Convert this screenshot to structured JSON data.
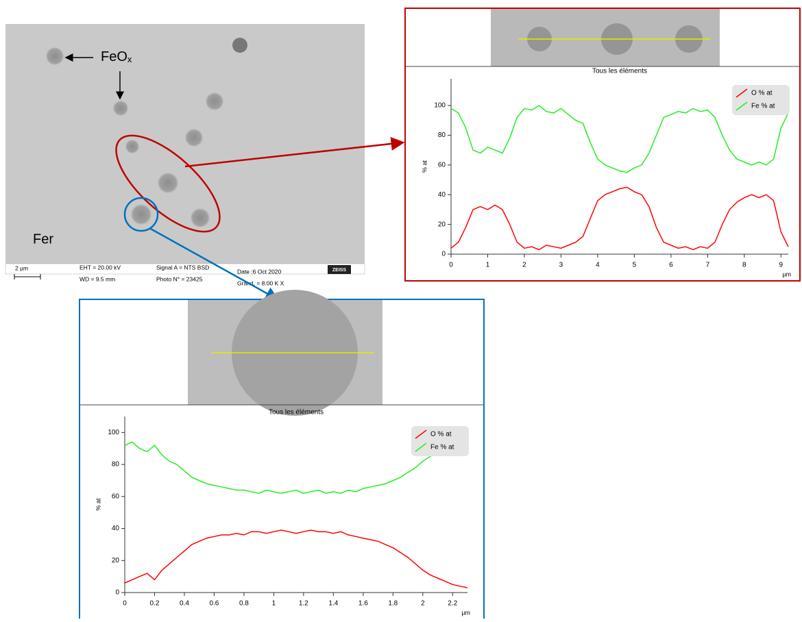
{
  "sem": {
    "label_oxide": "FeO",
    "label_oxide_sub": "x",
    "label_matrix": "Fer",
    "scale": "2 µm",
    "eht": "EHT = 20.00 kV",
    "wd": "WD = 9.5 mm",
    "signal": "Signal A = NTS BSD",
    "photo": "Photo N° = 23425",
    "date": "Date :6 Oct 2020",
    "mag": "Grand. =   8.00 K X",
    "brand": "ZEISS"
  },
  "chart_data": [
    {
      "type": "line",
      "title": "Tous les éléments",
      "x_label": "µm",
      "y_label": "% at",
      "x": [
        0,
        0.2,
        0.4,
        0.6,
        0.8,
        1.0,
        1.2,
        1.4,
        1.6,
        1.8,
        2.0,
        2.2,
        2.4,
        2.6,
        2.8,
        3.0,
        3.2,
        3.4,
        3.6,
        3.8,
        4.0,
        4.2,
        4.4,
        4.6,
        4.8,
        5.0,
        5.2,
        5.4,
        5.6,
        5.8,
        6.0,
        6.2,
        6.4,
        6.6,
        6.8,
        7.0,
        7.2,
        7.4,
        7.6,
        7.8,
        8.0,
        8.2,
        8.4,
        8.6,
        8.8,
        9.0,
        9.2
      ],
      "series": [
        {
          "name": "O % at",
          "color": "#ff0000",
          "values": [
            4,
            8,
            18,
            30,
            32,
            30,
            33,
            30,
            20,
            8,
            4,
            5,
            3,
            6,
            5,
            4,
            6,
            8,
            12,
            24,
            36,
            40,
            42,
            44,
            45,
            42,
            40,
            32,
            18,
            8,
            6,
            4,
            5,
            3,
            5,
            4,
            8,
            20,
            30,
            35,
            38,
            40,
            38,
            40,
            36,
            15,
            5
          ]
        },
        {
          "name": "Fe % at",
          "color": "#22ee22",
          "values": [
            98,
            95,
            85,
            70,
            68,
            72,
            70,
            68,
            78,
            92,
            98,
            97,
            100,
            96,
            95,
            98,
            94,
            90,
            88,
            75,
            64,
            60,
            58,
            56,
            55,
            58,
            60,
            68,
            80,
            92,
            94,
            96,
            95,
            98,
            96,
            97,
            92,
            80,
            70,
            64,
            62,
            60,
            62,
            60,
            64,
            85,
            95
          ]
        }
      ],
      "xlim": [
        0,
        9.2
      ],
      "ylim": [
        0,
        118
      ],
      "xticks": [
        0,
        1,
        2,
        3,
        4,
        5,
        6,
        7,
        8,
        9
      ],
      "yticks": [
        0,
        20,
        40,
        60,
        80,
        100
      ]
    },
    {
      "type": "line",
      "title": "Tous les éléments",
      "x_label": "µm",
      "y_label": "% at",
      "x": [
        0,
        0.05,
        0.1,
        0.15,
        0.2,
        0.25,
        0.3,
        0.35,
        0.4,
        0.45,
        0.5,
        0.55,
        0.6,
        0.65,
        0.7,
        0.75,
        0.8,
        0.85,
        0.9,
        0.95,
        1.0,
        1.05,
        1.1,
        1.15,
        1.2,
        1.25,
        1.3,
        1.35,
        1.4,
        1.45,
        1.5,
        1.55,
        1.6,
        1.65,
        1.7,
        1.75,
        1.8,
        1.85,
        1.9,
        1.95,
        2.0,
        2.05,
        2.1,
        2.15,
        2.2,
        2.25,
        2.3
      ],
      "series": [
        {
          "name": "O % at",
          "color": "#ff0000",
          "values": [
            6,
            8,
            10,
            12,
            8,
            14,
            18,
            22,
            26,
            30,
            32,
            34,
            35,
            36,
            36,
            37,
            36,
            38,
            38,
            37,
            38,
            39,
            38,
            37,
            38,
            39,
            38,
            38,
            37,
            38,
            36,
            35,
            34,
            33,
            32,
            30,
            28,
            25,
            22,
            18,
            14,
            11,
            9,
            7,
            5,
            4,
            3
          ]
        },
        {
          "name": "Fe % at",
          "color": "#22ee22",
          "values": [
            92,
            94,
            90,
            88,
            92,
            86,
            82,
            80,
            76,
            72,
            70,
            68,
            67,
            66,
            65,
            64,
            64,
            63,
            62,
            64,
            63,
            62,
            63,
            64,
            62,
            63,
            64,
            62,
            63,
            62,
            64,
            63,
            65,
            66,
            67,
            68,
            70,
            72,
            75,
            78,
            82,
            85,
            88,
            92,
            94,
            96,
            98
          ]
        }
      ],
      "xlim": [
        0,
        2.3
      ],
      "ylim": [
        0,
        110
      ],
      "xticks": [
        0,
        0.2,
        0.4,
        0.6,
        0.8,
        1,
        1.2,
        1.4,
        1.6,
        1.8,
        2,
        2.2
      ],
      "yticks": [
        0,
        20,
        40,
        60,
        80,
        100
      ]
    }
  ]
}
